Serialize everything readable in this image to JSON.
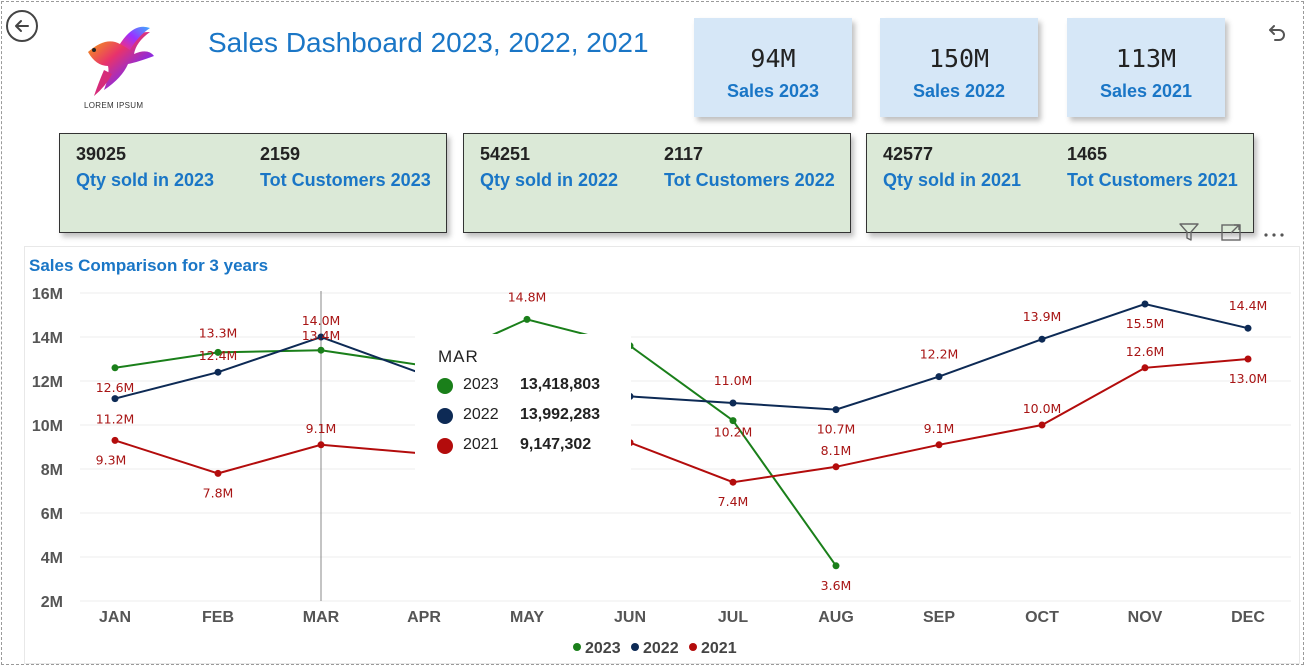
{
  "header": {
    "title": "Sales Dashboard 2023, 2022, 2021",
    "logo_text": "LOREM IPSUM",
    "back_icon": "back-arrow-icon",
    "undo_icon": "undo-icon"
  },
  "kpis": [
    {
      "value": "94M",
      "label": "Sales 2023"
    },
    {
      "value": "150M",
      "label": "Sales 2022"
    },
    {
      "value": "113M",
      "label": "Sales 2021"
    }
  ],
  "cards": [
    {
      "qty": "39025",
      "qty_label": "Qty sold in 2023",
      "cust": "2159",
      "cust_label": "Tot Customers 2023"
    },
    {
      "qty": "54251",
      "qty_label": "Qty sold in 2022",
      "cust": "2117",
      "cust_label": "Tot Customers 2022"
    },
    {
      "qty": "42577",
      "qty_label": "Qty sold in 2021",
      "cust": "1465",
      "cust_label": "Tot Customers 2021"
    }
  ],
  "visual_header": {
    "icons": [
      "filter-icon",
      "focus-mode-icon",
      "more-options-icon"
    ]
  },
  "tooltip": {
    "title": "MAR",
    "rows": [
      {
        "year": "2023",
        "value": "13,418,803",
        "color": "#1a7f1a"
      },
      {
        "year": "2022",
        "value": "13,992,283",
        "color": "#0d2a55"
      },
      {
        "year": "2021",
        "value": "9,147,302",
        "color": "#b30c0c"
      }
    ]
  },
  "chart_data": {
    "type": "line",
    "title": "Sales Comparison for 3 years",
    "categories": [
      "JAN",
      "FEB",
      "MAR",
      "APR",
      "MAY",
      "JUN",
      "JUL",
      "AUG",
      "SEP",
      "OCT",
      "NOV",
      "DEC"
    ],
    "ylim": [
      2,
      16
    ],
    "yticks": [
      "2M",
      "4M",
      "6M",
      "8M",
      "10M",
      "12M",
      "14M",
      "16M"
    ],
    "ytick_values": [
      2,
      4,
      6,
      8,
      10,
      12,
      14,
      16
    ],
    "y_unit": "M",
    "grid": true,
    "legend_position": "bottom-center",
    "hover_category": "MAR",
    "series": [
      {
        "name": "2023",
        "color": "#1a7f1a",
        "values": [
          12.6,
          13.3,
          13.4,
          12.7,
          14.8,
          13.6,
          10.2,
          3.6,
          null,
          null,
          null,
          null
        ],
        "labels": [
          "",
          "",
          "",
          "",
          "14.8M",
          "",
          "",
          "3.6M",
          "",
          "",
          "",
          ""
        ]
      },
      {
        "name": "2022",
        "color": "#0d2a55",
        "values": [
          11.2,
          12.4,
          14.0,
          12.3,
          11.8,
          11.3,
          11.0,
          10.7,
          12.2,
          13.9,
          15.5,
          14.4
        ],
        "labels": [
          "",
          "12.4M",
          "14.0M",
          "",
          "",
          "",
          "11.0M",
          "10.7M",
          "12.2M",
          "13.9M",
          "15.5M",
          "14.4M"
        ]
      },
      {
        "name": "2021",
        "color": "#b30c0c",
        "values": [
          9.3,
          7.8,
          9.1,
          8.7,
          9.4,
          9.2,
          7.4,
          8.1,
          9.1,
          10.0,
          12.6,
          13.0
        ],
        "labels": [
          "9.3M",
          "7.8M",
          "9.1M",
          "",
          "",
          "",
          "7.4M",
          "8.1M",
          "9.1M",
          "10.0M",
          "12.6M",
          "13.0M"
        ]
      }
    ],
    "partial_labels": [
      {
        "text": "12.6M",
        "series": "2023",
        "index": 0
      },
      {
        "text": "11.2M",
        "series": "2022",
        "index": 0
      },
      {
        "text": "13.3M",
        "series": "2023",
        "index": 1
      },
      {
        "text": "13.4M",
        "series": "2023",
        "index": 2
      },
      {
        "text": "10.2M",
        "series": "2023",
        "index": 6
      }
    ]
  }
}
